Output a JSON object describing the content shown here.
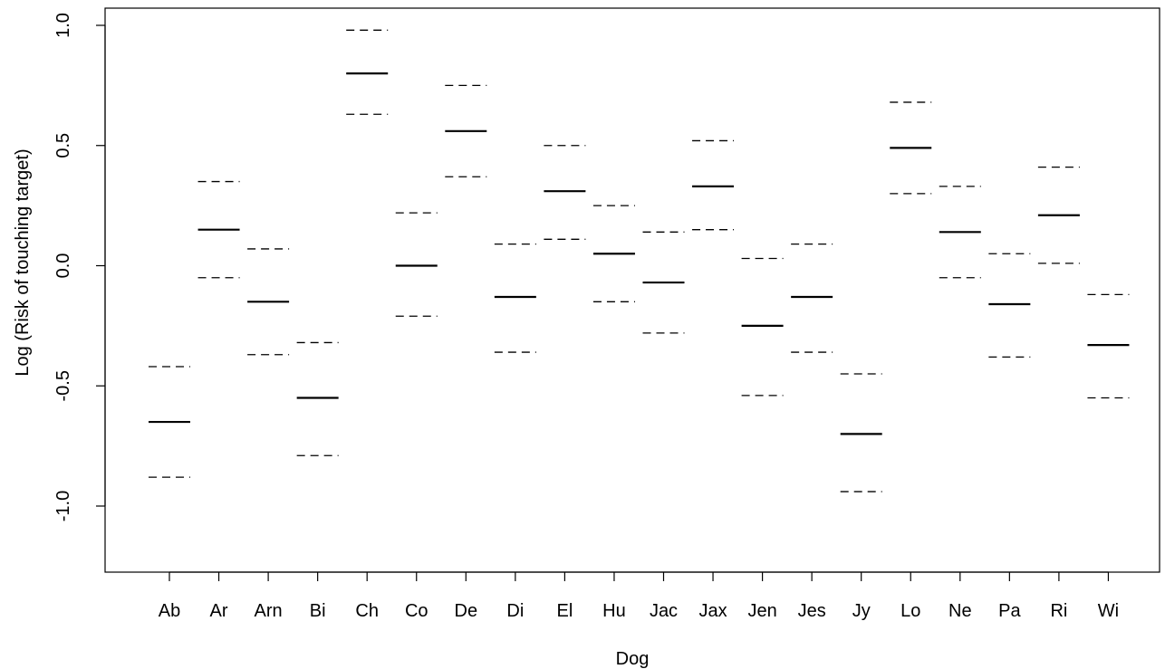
{
  "chart_data": {
    "type": "interval",
    "title": "",
    "xlabel": "Dog",
    "ylabel": "Log (Risk of touching target)",
    "ylim": [
      -1.27,
      1.08
    ],
    "yticks": [
      -1.0,
      -0.5,
      0.0,
      0.5,
      1.0
    ],
    "ytick_labels": [
      "-1.0",
      "-0.5",
      "0.0",
      "0.5",
      "1.0"
    ],
    "grid": false,
    "legend": "none",
    "categories": [
      "Ab",
      "Ar",
      "Arn",
      "Bi",
      "Ch",
      "Co",
      "De",
      "Di",
      "El",
      "Hu",
      "Jac",
      "Jax",
      "Jen",
      "Jes",
      "Jy",
      "Lo",
      "Ne",
      "Pa",
      "Ri",
      "Wi"
    ],
    "series": [
      {
        "role": "estimate",
        "line_style": "solid",
        "values": [
          -0.65,
          0.15,
          -0.15,
          -0.55,
          0.8,
          0.0,
          0.56,
          -0.13,
          0.31,
          0.05,
          -0.07,
          0.33,
          -0.25,
          -0.13,
          -0.7,
          0.49,
          0.14,
          -0.16,
          0.21,
          -0.33
        ]
      },
      {
        "role": "upper",
        "line_style": "dashed",
        "values": [
          -0.42,
          0.35,
          0.07,
          -0.32,
          0.98,
          0.22,
          0.75,
          0.09,
          0.5,
          0.25,
          0.14,
          0.52,
          0.03,
          0.09,
          -0.45,
          0.68,
          0.33,
          0.05,
          0.41,
          -0.12
        ]
      },
      {
        "role": "lower",
        "line_style": "dashed",
        "values": [
          -0.88,
          -0.05,
          -0.37,
          -0.79,
          0.63,
          -0.21,
          0.37,
          -0.36,
          0.11,
          -0.15,
          -0.28,
          0.15,
          -0.54,
          -0.36,
          -0.94,
          0.3,
          -0.05,
          -0.38,
          0.01,
          -0.55
        ]
      }
    ],
    "colors": {
      "lines": "#000000",
      "background": "#ffffff"
    }
  }
}
